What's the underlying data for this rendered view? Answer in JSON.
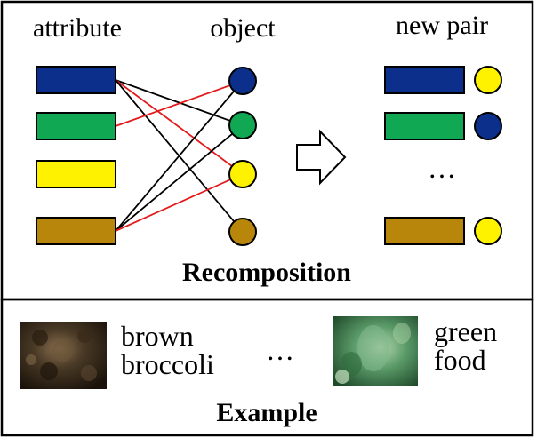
{
  "recomposition": {
    "header_attribute": "attribute",
    "header_object": "object",
    "header_new_pair": "new pair",
    "ellipsis": "…",
    "title": "Recomposition",
    "attributes": [
      {
        "color": "#0b2f8a"
      },
      {
        "color": "#10a853"
      },
      {
        "color": "#fff200"
      },
      {
        "color": "#b8860b"
      }
    ],
    "objects": [
      {
        "color": "#0b2f8a"
      },
      {
        "color": "#10a853"
      },
      {
        "color": "#fff200"
      },
      {
        "color": "#b8860b"
      }
    ],
    "edges": [
      {
        "attribute": 0,
        "object": 1,
        "color": "#000000"
      },
      {
        "attribute": 0,
        "object": 2,
        "color": "#e31a1c"
      },
      {
        "attribute": 0,
        "object": 3,
        "color": "#000000"
      },
      {
        "attribute": 1,
        "object": 0,
        "color": "#e31a1c"
      },
      {
        "attribute": 3,
        "object": 0,
        "color": "#000000"
      },
      {
        "attribute": 3,
        "object": 1,
        "color": "#000000"
      },
      {
        "attribute": 3,
        "object": 2,
        "color": "#e31a1c"
      }
    ],
    "new_pairs": [
      {
        "attribute_color": "#0b2f8a",
        "object_color": "#fff200"
      },
      {
        "attribute_color": "#10a853",
        "object_color": "#0b2f8a"
      },
      {
        "attribute_color": "#b8860b",
        "object_color": "#fff200"
      }
    ]
  },
  "example": {
    "title": "Example",
    "ellipsis": "…",
    "items": [
      {
        "line1": "brown",
        "line2": "broccoli",
        "image": "dark-broccoli-photo"
      },
      {
        "line1": "green",
        "line2": "food",
        "image": "green-food-photo"
      }
    ]
  }
}
